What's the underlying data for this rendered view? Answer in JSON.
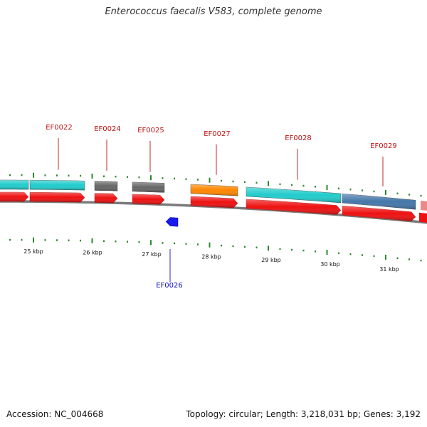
{
  "title": "Enterococcus faecalis V583, complete genome",
  "footer": {
    "accession": "Accession: NC_004668",
    "stats": "Topology: circular; Length: 3,218,031 bp; Genes: 3,192"
  },
  "colors": {
    "cds": "#ee1111",
    "backbone": "#888888",
    "tick": "#2a8a2a",
    "forward_label": "#bb1111",
    "reverse_label": "#1111cc"
  },
  "scale_labels": [
    "25 kbp",
    "26 kbp",
    "27 kbp",
    "28 kbp",
    "29 kbp",
    "30 kbp",
    "31 kbp"
  ],
  "genes": [
    {
      "label": "EF0022",
      "strand": "forward",
      "category_color": "#22cccc"
    },
    {
      "label": "EF0024",
      "strand": "forward",
      "category_color": "#666666"
    },
    {
      "label": "EF0025",
      "strand": "forward",
      "category_color": "#666666"
    },
    {
      "label": "EF0026",
      "strand": "reverse",
      "category_color": ""
    },
    {
      "label": "EF0027",
      "strand": "forward",
      "category_color": "#ff8800"
    },
    {
      "label": "EF0028",
      "strand": "forward",
      "category_color": "#22cccc"
    },
    {
      "label": "EF0029",
      "strand": "forward",
      "category_color": "#4477aa"
    }
  ]
}
